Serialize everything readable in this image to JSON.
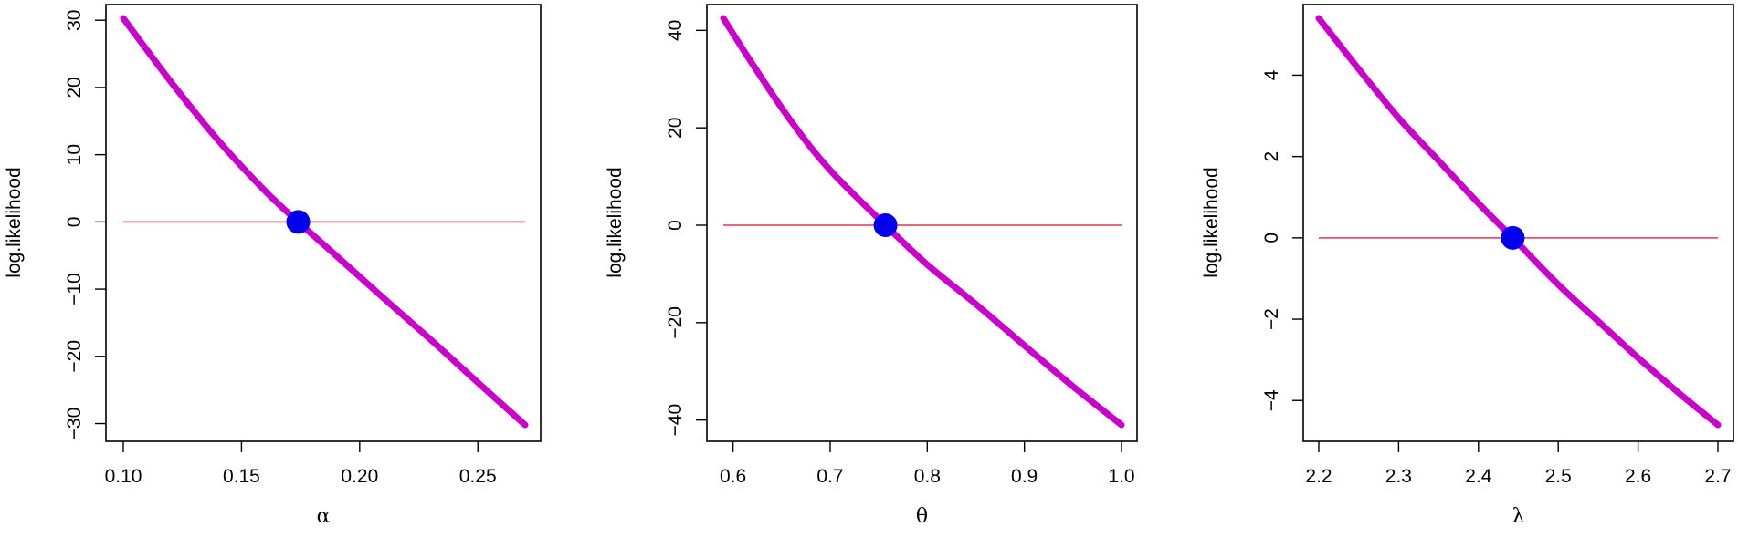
{
  "chart_data": [
    {
      "type": "line",
      "xlabel": "α",
      "ylabel": "log.likelihood",
      "xlim": [
        0.1,
        0.27
      ],
      "ylim": [
        -30.2,
        30.3
      ],
      "xticks": [
        "0.10",
        "0.15",
        "0.20",
        "0.25"
      ],
      "yticks": [
        "−30",
        "−20",
        "−10",
        "0",
        "10",
        "20",
        "30"
      ],
      "grid": false,
      "series": [
        {
          "color": "#CC00CC",
          "x": [
            0.1,
            0.12,
            0.14,
            0.16,
            0.174,
            0.19,
            0.21,
            0.23,
            0.25,
            0.27
          ],
          "y": [
            30.3,
            20.9,
            12.2,
            4.6,
            0.0,
            -5.0,
            -11.3,
            -17.5,
            -23.9,
            -30.2
          ]
        }
      ],
      "reference_line": {
        "y": 0,
        "color": "#E8536A"
      },
      "root_marker": {
        "x": 0.174,
        "y": 0,
        "color": "#0000EE"
      }
    },
    {
      "type": "line",
      "xlabel": "θ",
      "ylabel": "log.likelihood",
      "xlim": [
        0.59,
        1.0
      ],
      "ylim": [
        -41,
        42.5
      ],
      "xticks": [
        "0.6",
        "0.7",
        "0.8",
        "0.9",
        "1.0"
      ],
      "yticks": [
        "−40",
        "−20",
        "0",
        "20",
        "40"
      ],
      "grid": false,
      "series": [
        {
          "color": "#CC00CC",
          "x": [
            0.59,
            0.62,
            0.66,
            0.7,
            0.757,
            0.8,
            0.85,
            0.9,
            0.95,
            1.0
          ],
          "y": [
            42.5,
            33.1,
            21.3,
            11.3,
            0.0,
            -8.1,
            -16.2,
            -24.7,
            -33.1,
            -41.0
          ]
        }
      ],
      "reference_line": {
        "y": 0,
        "color": "#E8536A"
      },
      "root_marker": {
        "x": 0.757,
        "y": 0,
        "color": "#0000EE"
      }
    },
    {
      "type": "line",
      "xlabel": "λ",
      "ylabel": "log.likelihood",
      "xlim": [
        2.2,
        2.7
      ],
      "ylim": [
        -4.6,
        5.4
      ],
      "xticks": [
        "2.2",
        "2.3",
        "2.4",
        "2.5",
        "2.6",
        "2.7"
      ],
      "yticks": [
        "−4",
        "−2",
        "0",
        "2",
        "4"
      ],
      "grid": false,
      "series": [
        {
          "color": "#CC00CC",
          "x": [
            2.2,
            2.25,
            2.3,
            2.35,
            2.4,
            2.443,
            2.5,
            2.55,
            2.6,
            2.65,
            2.7
          ],
          "y": [
            5.4,
            4.15,
            2.95,
            1.9,
            0.85,
            0.0,
            -1.15,
            -2.05,
            -2.95,
            -3.8,
            -4.6
          ]
        }
      ],
      "reference_line": {
        "y": 0,
        "color": "#E8536A"
      },
      "root_marker": {
        "x": 2.443,
        "y": 0,
        "color": "#0000EE"
      }
    }
  ]
}
